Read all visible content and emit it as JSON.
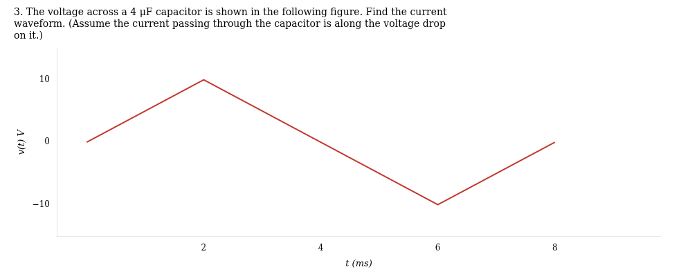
{
  "chart_data": {
    "type": "line",
    "title": "3. The voltage across a 4 μF capacitor is shown in the following figure. Find the current\nwaveform. (Assume the current passing through the capacitor is along the voltage drop\non it.)",
    "x_label": "t (ms)",
    "y_label": "v(t) V",
    "x": [
      0,
      2,
      4,
      6,
      8
    ],
    "values": [
      0,
      10,
      0,
      -10,
      0
    ],
    "color": "#c0392b",
    "xlim": [
      -0.5,
      9.8
    ],
    "ylim": [
      -15,
      15
    ],
    "xticks": [
      2,
      4,
      6,
      8
    ],
    "yticks": [
      {
        "value": -10,
        "label": "−10"
      },
      0,
      10
    ],
    "grid": false
  }
}
